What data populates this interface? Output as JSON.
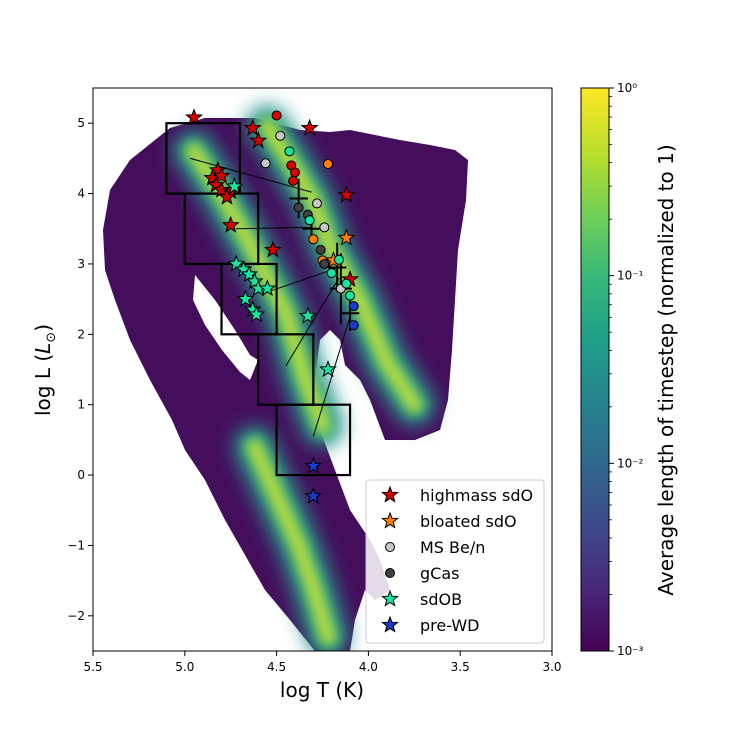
{
  "chart_data": {
    "type": "scatter",
    "xlabel": "log T (K)",
    "ylabel": "log L (L⊙)",
    "xlim": [
      5.5,
      3.0
    ],
    "ylim": [
      -2.5,
      5.5
    ],
    "xticks": [
      "5.5",
      "5.0",
      "4.5",
      "4.0",
      "3.5",
      "3.0"
    ],
    "yticks": [
      "−2",
      "−1",
      "0",
      "1",
      "2",
      "3",
      "4",
      "5"
    ],
    "colorbar": {
      "label": "Average length of timestep (normalized to 1)",
      "scale": "log",
      "range": [
        0.001,
        1
      ],
      "ticks": [
        "10⁻³",
        "10⁻²",
        "10⁻¹",
        "10⁰"
      ],
      "colormap": [
        "#440154",
        "#482878",
        "#3e4989",
        "#31688e",
        "#26828e",
        "#1f9e89",
        "#35b779",
        "#6ece58",
        "#b5de2b",
        "#fde725"
      ]
    },
    "boxes": [
      {
        "tmax": 5.1,
        "tmin": 4.7,
        "lmin": 4.0,
        "lmax": 5.0
      },
      {
        "tmax": 5.0,
        "tmin": 4.6,
        "lmin": 3.0,
        "lmax": 4.0
      },
      {
        "tmax": 4.8,
        "tmin": 4.5,
        "lmin": 2.0,
        "lmax": 3.0
      },
      {
        "tmax": 4.6,
        "tmin": 4.3,
        "lmin": 1.0,
        "lmax": 2.0
      },
      {
        "tmax": 4.5,
        "tmin": 4.1,
        "lmin": 0.0,
        "lmax": 1.0
      }
    ],
    "connectors": [
      [
        [
          4.97,
          4.5
        ],
        [
          4.31,
          4.02
        ]
      ],
      [
        [
          4.72,
          3.5
        ],
        [
          4.31,
          3.52
        ]
      ],
      [
        [
          4.55,
          2.6
        ],
        [
          4.16,
          2.95
        ]
      ],
      [
        [
          4.45,
          1.55
        ],
        [
          4.16,
          2.8
        ]
      ],
      [
        [
          4.3,
          0.55
        ],
        [
          4.1,
          2.25
        ]
      ]
    ],
    "error_bars": [
      {
        "t": 4.38,
        "l": 3.93,
        "dt": 0.05,
        "dl": 0.28
      },
      {
        "t": 4.31,
        "l": 3.5,
        "dt": 0.05,
        "dl": 0.2
      },
      {
        "t": 4.17,
        "l": 2.95,
        "dt": 0.05,
        "dl": 0.35
      },
      {
        "t": 4.15,
        "l": 2.65,
        "dt": 0.06,
        "dl": 0.5
      },
      {
        "t": 4.1,
        "l": 2.3,
        "dt": 0.05,
        "dl": 0.25
      }
    ],
    "density_bands": [
      {
        "name": "main band",
        "points": [
          [
            4.55,
            4.95
          ],
          [
            4.45,
            4.55
          ],
          [
            4.3,
            3.9
          ],
          [
            4.2,
            3.2
          ],
          [
            4.05,
            2.5
          ],
          [
            3.9,
            1.6
          ],
          [
            3.75,
            1.0
          ]
        ]
      },
      {
        "name": "mid band",
        "points": [
          [
            4.95,
            4.6
          ],
          [
            4.8,
            4.0
          ],
          [
            4.65,
            3.3
          ],
          [
            4.45,
            2.3
          ],
          [
            4.35,
            1.4
          ],
          [
            4.25,
            0.7
          ]
        ]
      },
      {
        "name": "white dwarf band",
        "points": [
          [
            4.62,
            0.4
          ],
          [
            4.5,
            -0.3
          ],
          [
            4.38,
            -1.0
          ],
          [
            4.3,
            -1.6
          ],
          [
            4.22,
            -2.3
          ]
        ]
      }
    ],
    "series": [
      {
        "name": "highmass sdO",
        "marker": "star",
        "color": "#d40000",
        "points": [
          [
            4.95,
            5.08
          ],
          [
            4.63,
            4.93
          ],
          [
            4.6,
            4.75
          ],
          [
            4.32,
            4.93
          ],
          [
            4.82,
            4.33
          ],
          [
            4.85,
            4.22
          ],
          [
            4.8,
            4.25
          ],
          [
            4.83,
            4.12
          ],
          [
            4.8,
            4.05
          ],
          [
            4.75,
            4.03
          ],
          [
            4.77,
            3.95
          ],
          [
            4.12,
            3.98
          ],
          [
            4.75,
            3.55
          ],
          [
            4.52,
            3.2
          ],
          [
            4.1,
            2.78
          ]
        ]
      },
      {
        "name": "highmass sdO (circles)",
        "marker": "circle",
        "color": "#d40000",
        "legend": false,
        "points": [
          [
            4.5,
            5.11
          ],
          [
            4.42,
            4.4
          ],
          [
            4.4,
            4.3
          ],
          [
            4.41,
            4.18
          ]
        ]
      },
      {
        "name": "bloated sdO",
        "marker": "star",
        "color": "#ff8000",
        "points": [
          [
            4.12,
            3.37
          ],
          [
            4.19,
            3.05
          ]
        ]
      },
      {
        "name": "bloated sdO (circles)",
        "marker": "circle",
        "color": "#ff8000",
        "legend": false,
        "points": [
          [
            4.22,
            4.42
          ],
          [
            4.3,
            3.35
          ],
          [
            4.25,
            3.05
          ]
        ]
      },
      {
        "name": "MS Be/n",
        "marker": "circle",
        "color": "#c8c8c8",
        "points": [
          [
            4.48,
            4.82
          ],
          [
            4.56,
            4.43
          ],
          [
            4.28,
            3.86
          ],
          [
            4.24,
            3.52
          ],
          [
            4.15,
            2.65
          ]
        ]
      },
      {
        "name": "gCas",
        "marker": "circle",
        "color": "#404040",
        "points": [
          [
            4.33,
            3.7
          ],
          [
            4.38,
            3.8
          ],
          [
            4.26,
            3.2
          ],
          [
            4.24,
            3.0
          ]
        ]
      },
      {
        "name": "sdOB",
        "marker": "star",
        "color": "#19e3a0",
        "points": [
          [
            4.73,
            4.1
          ],
          [
            4.72,
            3.0
          ],
          [
            4.68,
            2.92
          ],
          [
            4.65,
            2.85
          ],
          [
            4.62,
            2.75
          ],
          [
            4.6,
            2.65
          ],
          [
            4.55,
            2.65
          ],
          [
            4.67,
            2.5
          ],
          [
            4.63,
            2.35
          ],
          [
            4.61,
            2.28
          ],
          [
            4.33,
            2.26
          ],
          [
            4.22,
            1.5
          ]
        ]
      },
      {
        "name": "sdOB (circles)",
        "marker": "circle",
        "color": "#19e3a0",
        "legend": false,
        "points": [
          [
            4.43,
            4.6
          ],
          [
            4.32,
            3.62
          ],
          [
            4.16,
            3.06
          ],
          [
            4.2,
            2.87
          ],
          [
            4.12,
            2.72
          ],
          [
            4.1,
            2.55
          ]
        ]
      },
      {
        "name": "pre-WD",
        "marker": "star",
        "color": "#1a3acc",
        "points": [
          [
            4.3,
            0.13
          ],
          [
            4.3,
            -0.3
          ]
        ]
      },
      {
        "name": "pre-WD (circles)",
        "marker": "circle",
        "color": "#1a3acc",
        "legend": false,
        "points": [
          [
            4.08,
            2.4
          ],
          [
            4.08,
            2.13
          ]
        ]
      }
    ]
  }
}
